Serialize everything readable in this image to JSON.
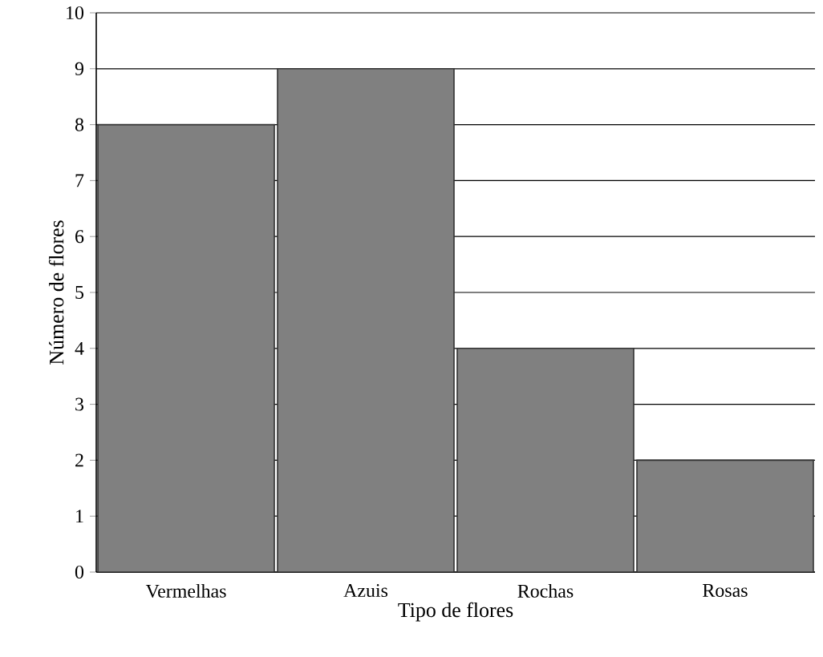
{
  "chart_data": {
    "type": "bar",
    "xlabel": "Tipo de flores",
    "ylabel": "Número de flores",
    "categories": [
      "Vermelhas",
      "Azuis",
      "Rochas",
      "Rosas"
    ],
    "values": [
      8,
      9,
      4,
      2
    ],
    "color": "#808080",
    "ylim": [
      0,
      10
    ],
    "yticks": [
      0,
      1,
      2,
      3,
      4,
      5,
      6,
      7,
      8,
      9,
      10
    ],
    "grid": "y"
  }
}
